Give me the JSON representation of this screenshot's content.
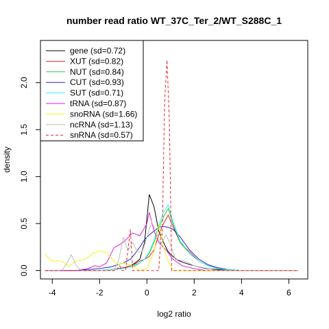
{
  "chart_data": {
    "type": "line",
    "title": "number read ratio WT_37C_Ter_2/WT_S288C_1",
    "xlabel": "log2 ratio",
    "ylabel": "density",
    "xlim": [
      -4.5,
      6.8
    ],
    "ylim": [
      -0.09,
      2.45
    ],
    "x_ticks": [
      -4,
      -2,
      0,
      2,
      4,
      6
    ],
    "y_ticks": [
      0.0,
      0.5,
      1.0,
      1.5,
      2.0
    ],
    "grid": false,
    "legend_position": "top-left",
    "series": [
      {
        "name": "gene (sd=0.72)",
        "color": "#000000",
        "dash": false,
        "x": [
          -4.3,
          -3.0,
          -2.0,
          -1.5,
          -1.0,
          -0.7,
          -0.5,
          -0.3,
          -0.1,
          0.1,
          0.3,
          0.5,
          0.7,
          0.9,
          1.1,
          1.3,
          1.6,
          2.0,
          2.5,
          3.0,
          3.5,
          4.0,
          5.0,
          6.4
        ],
        "y": [
          0.0,
          0.0,
          0.0,
          0.01,
          0.02,
          0.05,
          0.08,
          0.12,
          0.3,
          0.81,
          0.68,
          0.42,
          0.3,
          0.2,
          0.15,
          0.11,
          0.08,
          0.05,
          0.02,
          0.01,
          0.0,
          0.0,
          0.0,
          0.0
        ]
      },
      {
        "name": "XUT (sd=0.82)",
        "color": "#e8242a",
        "dash": false,
        "x": [
          -4.3,
          -3.0,
          -2.0,
          -1.5,
          -1.0,
          -0.7,
          -0.5,
          -0.3,
          -0.1,
          0.1,
          0.3,
          0.5,
          0.7,
          0.9,
          1.1,
          1.4,
          1.8,
          2.2,
          2.6,
          3.0,
          3.5,
          4.0,
          5.0,
          6.4
        ],
        "y": [
          0.0,
          0.0,
          0.0,
          0.01,
          0.03,
          0.05,
          0.07,
          0.1,
          0.12,
          0.15,
          0.22,
          0.38,
          0.5,
          0.59,
          0.47,
          0.3,
          0.2,
          0.1,
          0.05,
          0.02,
          0.01,
          0.0,
          0.0,
          0.0
        ]
      },
      {
        "name": "NUT (sd=0.84)",
        "color": "#35c33a",
        "dash": false,
        "x": [
          -4.3,
          -3.0,
          -2.0,
          -1.5,
          -1.0,
          -0.7,
          -0.5,
          -0.3,
          -0.1,
          0.1,
          0.3,
          0.5,
          0.7,
          0.9,
          1.1,
          1.4,
          1.8,
          2.2,
          2.6,
          3.0,
          3.5,
          4.0,
          5.0,
          6.4
        ],
        "y": [
          0.0,
          0.0,
          0.0,
          0.01,
          0.02,
          0.04,
          0.05,
          0.08,
          0.12,
          0.18,
          0.3,
          0.45,
          0.57,
          0.66,
          0.5,
          0.3,
          0.18,
          0.1,
          0.05,
          0.02,
          0.01,
          0.0,
          0.0,
          0.0
        ]
      },
      {
        "name": "CUT (sd=0.93)",
        "color": "#2323c9",
        "dash": false,
        "x": [
          -4.3,
          -3.0,
          -2.5,
          -2.0,
          -1.5,
          -1.0,
          -0.7,
          -0.5,
          -0.3,
          -0.1,
          0.1,
          0.3,
          0.5,
          0.7,
          0.9,
          1.1,
          1.4,
          1.8,
          2.2,
          2.6,
          3.0,
          3.5,
          4.0,
          5.0,
          6.4
        ],
        "y": [
          0.0,
          0.0,
          0.01,
          0.02,
          0.04,
          0.08,
          0.12,
          0.18,
          0.25,
          0.33,
          0.38,
          0.42,
          0.46,
          0.47,
          0.46,
          0.44,
          0.36,
          0.22,
          0.12,
          0.06,
          0.03,
          0.01,
          0.0,
          0.0,
          0.0
        ]
      },
      {
        "name": "SUT (sd=0.71)",
        "color": "#33f3f0",
        "dash": false,
        "x": [
          -4.3,
          -3.0,
          -2.0,
          -1.5,
          -1.0,
          -0.7,
          -0.5,
          -0.3,
          -0.1,
          0.1,
          0.3,
          0.5,
          0.7,
          0.9,
          1.1,
          1.4,
          1.8,
          2.2,
          2.6,
          3.0,
          3.5,
          4.0,
          5.0,
          6.4
        ],
        "y": [
          0.0,
          0.0,
          0.0,
          0.01,
          0.02,
          0.04,
          0.06,
          0.08,
          0.12,
          0.2,
          0.32,
          0.48,
          0.62,
          0.7,
          0.52,
          0.32,
          0.18,
          0.1,
          0.05,
          0.02,
          0.01,
          0.0,
          0.0,
          0.0
        ]
      },
      {
        "name": "tRNA (sd=0.87)",
        "color": "#d920d9",
        "dash": false,
        "x": [
          -4.3,
          -3.0,
          -2.5,
          -2.2,
          -2.0,
          -1.7,
          -1.4,
          -1.0,
          -0.6,
          -0.3,
          0.0,
          0.1,
          0.3,
          0.5,
          0.8,
          1.1,
          1.5,
          2.0,
          2.5,
          3.0,
          4.0,
          5.0,
          6.4
        ],
        "y": [
          0.0,
          0.0,
          0.02,
          0.05,
          0.04,
          0.08,
          0.24,
          0.3,
          0.4,
          0.37,
          0.5,
          0.62,
          0.42,
          0.3,
          0.22,
          0.12,
          0.05,
          0.02,
          0.0,
          0.0,
          0.0,
          0.0,
          0.0
        ]
      },
      {
        "name": "snoRNA (sd=1.66)",
        "color": "#f4f41c",
        "dash": false,
        "x": [
          -4.3,
          -4.0,
          -3.6,
          -3.3,
          -3.0,
          -2.6,
          -2.3,
          -2.0,
          -1.7,
          -1.4,
          -1.2,
          -1.0,
          -0.6,
          -0.3,
          0.0,
          0.3,
          0.5,
          0.7,
          0.9,
          1.1,
          1.3,
          1.6,
          2.0,
          2.5,
          3.0,
          6.4
        ],
        "y": [
          0.17,
          0.1,
          0.1,
          0.04,
          0.1,
          0.12,
          0.18,
          0.21,
          0.19,
          0.1,
          0.06,
          0.08,
          0.05,
          0.0,
          0.02,
          0.2,
          0.49,
          0.25,
          0.1,
          0.0,
          0.0,
          0.0,
          0.0,
          0.0,
          0.0,
          0.0
        ]
      },
      {
        "name": "ncRNA (sd=1.13)",
        "color": "#bdbdbd",
        "dash": false,
        "x": [
          -4.3,
          -3.6,
          -3.4,
          -3.2,
          -3.0,
          -2.8,
          -2.2,
          -1.8,
          -1.4,
          -1.2,
          -1.0,
          -0.8,
          -0.6,
          -0.4,
          -0.2,
          0.0,
          0.2,
          0.4,
          0.6,
          0.8,
          1.0,
          1.2,
          1.6,
          2.0,
          3.0,
          6.4
        ],
        "y": [
          0.0,
          0.0,
          0.07,
          0.17,
          0.06,
          0.0,
          0.0,
          0.0,
          0.0,
          0.1,
          0.35,
          0.22,
          0.3,
          0.2,
          0.2,
          0.35,
          0.52,
          0.4,
          0.28,
          0.38,
          0.28,
          0.12,
          0.1,
          0.05,
          0.0,
          0.0
        ]
      },
      {
        "name": "snRNA (sd=0.57)",
        "color": "#e8242a",
        "dash": true,
        "x": [
          -4.3,
          -1.3,
          -1.15,
          -1.05,
          -0.9,
          -0.7,
          -0.6,
          -0.5,
          0.5,
          0.6,
          0.65,
          0.75,
          0.85,
          0.95,
          1.05,
          1.15,
          6.4
        ],
        "y": [
          0.0,
          0.0,
          0.05,
          0.0,
          0.0,
          0.44,
          0.0,
          0.0,
          0.0,
          0.38,
          0.38,
          1.8,
          2.24,
          1.6,
          0.0,
          0.0,
          0.0
        ]
      }
    ]
  }
}
